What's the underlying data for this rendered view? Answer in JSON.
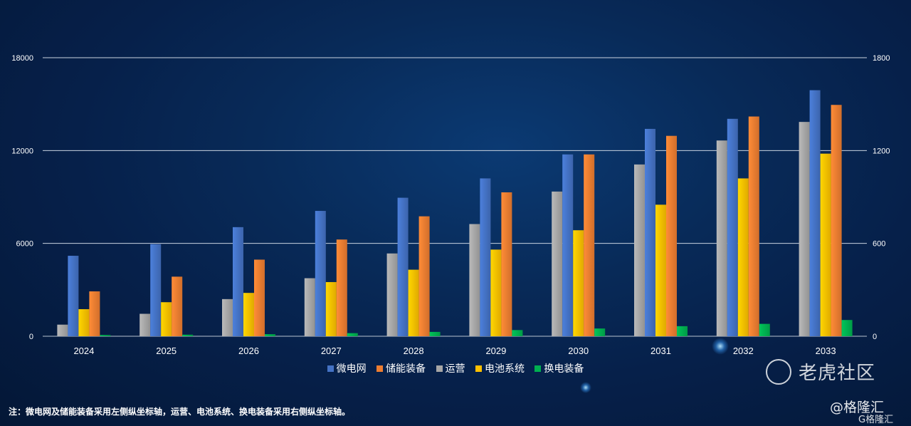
{
  "chart_data": {
    "type": "bar",
    "title": "",
    "categories": [
      "2024",
      "2025",
      "2026",
      "2027",
      "2028",
      "2029",
      "2030",
      "2031",
      "2032",
      "2033"
    ],
    "left_axis": {
      "ylim": [
        0,
        18000
      ],
      "ticks": [
        "0",
        "6000",
        "12000",
        "18000"
      ]
    },
    "right_axis": {
      "ylim": [
        0,
        1800
      ],
      "ticks": [
        "0",
        "600",
        "1200",
        "1800"
      ]
    },
    "series": [
      {
        "name": "运营",
        "axis": "right",
        "color": "#a6a6a6",
        "values": [
          75,
          145,
          240,
          375,
          535,
          725,
          935,
          1110,
          1265,
          1385
        ]
      },
      {
        "name": "微电网",
        "axis": "left",
        "color": "#4472c4",
        "values": [
          5200,
          5950,
          7050,
          8100,
          8950,
          10200,
          11750,
          13400,
          14050,
          15900
        ]
      },
      {
        "name": "电池系统",
        "axis": "right",
        "color": "#ffc000",
        "values": [
          175,
          220,
          280,
          350,
          430,
          560,
          685,
          850,
          1020,
          1180
        ]
      },
      {
        "name": "储能装备",
        "axis": "left",
        "color": "#ed7d31",
        "values": [
          2900,
          3850,
          4950,
          6250,
          7750,
          9300,
          11750,
          12950,
          14200,
          14950
        ]
      },
      {
        "name": "换电装备",
        "axis": "right",
        "color": "#00b050",
        "values": [
          8,
          10,
          13,
          20,
          28,
          40,
          50,
          65,
          80,
          105
        ]
      }
    ],
    "legend": [
      "微电网",
      "储能装备",
      "运营",
      "电池系统",
      "换电装备"
    ],
    "legend_placement": "bottom",
    "grid": true
  },
  "note": "注：微电网及储能装备采用左侧纵坐标轴，运营、电池系统、换电装备采用右侧纵坐标轴。",
  "watermark": {
    "brand1": "老虎社区",
    "brand2": "@格隆汇",
    "brand3": "G格隆汇"
  },
  "colors": {
    "background": "#06204a",
    "gridline": "#c9d3e0"
  }
}
